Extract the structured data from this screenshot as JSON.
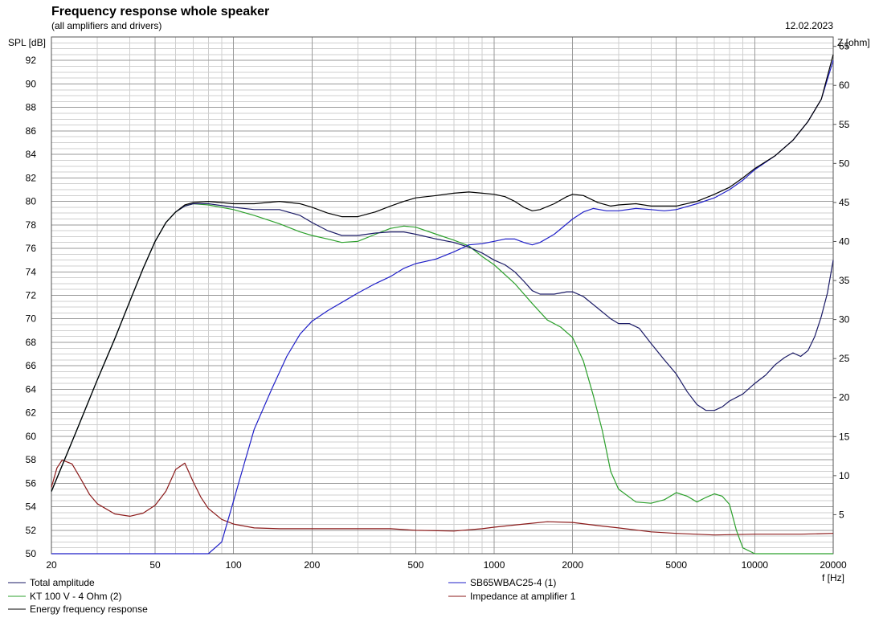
{
  "chart_data": {
    "type": "line",
    "title": "Frequency response whole speaker",
    "subtitle": "(all amplifiers and drivers)",
    "date": "12.02.2023",
    "ylabel": "SPL [dB]",
    "y2label": "Z [ohm]",
    "xlabel": "f [Hz]",
    "xscale": "log",
    "xlim": [
      20,
      20000
    ],
    "ylim": [
      50,
      94
    ],
    "y2lim": [
      0,
      66.2
    ],
    "grid": true,
    "legend_position": "bottom",
    "x_ticks": [
      20,
      50,
      100,
      200,
      500,
      1000,
      2000,
      5000,
      10000,
      20000
    ],
    "x_tick_labels": [
      "20",
      "50",
      "100",
      "200",
      "500",
      "1000",
      "2000",
      "5000",
      "10000",
      "20000"
    ],
    "y_ticks": [
      50,
      52,
      54,
      56,
      58,
      60,
      62,
      64,
      66,
      68,
      70,
      72,
      74,
      76,
      78,
      80,
      82,
      84,
      86,
      88,
      90,
      92
    ],
    "y_tick_labels": [
      "50",
      "52",
      "54",
      "56",
      "58",
      "60",
      "62",
      "64",
      "66",
      "68",
      "70",
      "72",
      "74",
      "76",
      "78",
      "80",
      "82",
      "84",
      "86",
      "88",
      "90",
      "92"
    ],
    "y2_ticks": [
      5,
      10,
      15,
      20,
      25,
      30,
      35,
      40,
      45,
      50,
      55,
      60,
      65
    ],
    "y2_tick_labels": [
      "5",
      "10",
      "15",
      "20",
      "25",
      "30",
      "35",
      "40",
      "45",
      "50",
      "55",
      "60",
      "65"
    ],
    "series": [
      {
        "name": "Total amplitude",
        "axis": "left",
        "color": "#1a1a66",
        "points": [
          [
            20,
            55.3
          ],
          [
            25,
            60.5
          ],
          [
            30,
            64.8
          ],
          [
            35,
            68.3
          ],
          [
            40,
            71.5
          ],
          [
            45,
            74.3
          ],
          [
            50,
            76.6
          ],
          [
            55,
            78.2
          ],
          [
            60,
            79.1
          ],
          [
            65,
            79.6
          ],
          [
            70,
            79.8
          ],
          [
            80,
            79.8
          ],
          [
            100,
            79.5
          ],
          [
            120,
            79.3
          ],
          [
            150,
            79.3
          ],
          [
            180,
            78.8
          ],
          [
            200,
            78.2
          ],
          [
            230,
            77.5
          ],
          [
            260,
            77.1
          ],
          [
            300,
            77.1
          ],
          [
            350,
            77.3
          ],
          [
            400,
            77.4
          ],
          [
            450,
            77.4
          ],
          [
            500,
            77.2
          ],
          [
            600,
            76.8
          ],
          [
            700,
            76.5
          ],
          [
            800,
            76.1
          ],
          [
            900,
            75.6
          ],
          [
            1000,
            75.0
          ],
          [
            1100,
            74.6
          ],
          [
            1200,
            74.0
          ],
          [
            1300,
            73.2
          ],
          [
            1400,
            72.4
          ],
          [
            1500,
            72.1
          ],
          [
            1700,
            72.1
          ],
          [
            1900,
            72.3
          ],
          [
            2000,
            72.3
          ],
          [
            2200,
            71.9
          ],
          [
            2500,
            70.9
          ],
          [
            2800,
            70.0
          ],
          [
            3000,
            69.6
          ],
          [
            3300,
            69.6
          ],
          [
            3600,
            69.2
          ],
          [
            4000,
            67.9
          ],
          [
            4500,
            66.5
          ],
          [
            5000,
            65.3
          ],
          [
            5500,
            63.8
          ],
          [
            6000,
            62.7
          ],
          [
            6500,
            62.2
          ],
          [
            7000,
            62.2
          ],
          [
            7500,
            62.5
          ],
          [
            8000,
            63.0
          ],
          [
            9000,
            63.6
          ],
          [
            10000,
            64.5
          ],
          [
            11000,
            65.2
          ],
          [
            12000,
            66.1
          ],
          [
            13000,
            66.7
          ],
          [
            14000,
            67.1
          ],
          [
            15000,
            66.8
          ],
          [
            16000,
            67.3
          ],
          [
            17000,
            68.5
          ],
          [
            18000,
            70.2
          ],
          [
            19000,
            72.2
          ],
          [
            20000,
            75.0
          ]
        ]
      },
      {
        "name": "SB65WBAC25-4 (1)",
        "axis": "left",
        "color": "#1f1fc8",
        "points": [
          [
            20,
            50
          ],
          [
            80,
            50
          ],
          [
            90,
            51.0
          ],
          [
            100,
            54.5
          ],
          [
            110,
            57.7
          ],
          [
            120,
            60.6
          ],
          [
            140,
            64.0
          ],
          [
            160,
            66.8
          ],
          [
            180,
            68.7
          ],
          [
            200,
            69.8
          ],
          [
            230,
            70.7
          ],
          [
            270,
            71.6
          ],
          [
            300,
            72.2
          ],
          [
            350,
            73.0
          ],
          [
            400,
            73.6
          ],
          [
            450,
            74.3
          ],
          [
            500,
            74.7
          ],
          [
            550,
            74.9
          ],
          [
            600,
            75.1
          ],
          [
            700,
            75.7
          ],
          [
            800,
            76.3
          ],
          [
            900,
            76.4
          ],
          [
            1000,
            76.6
          ],
          [
            1100,
            76.8
          ],
          [
            1200,
            76.8
          ],
          [
            1300,
            76.5
          ],
          [
            1400,
            76.3
          ],
          [
            1500,
            76.5
          ],
          [
            1700,
            77.2
          ],
          [
            2000,
            78.5
          ],
          [
            2200,
            79.1
          ],
          [
            2400,
            79.4
          ],
          [
            2700,
            79.2
          ],
          [
            3000,
            79.2
          ],
          [
            3500,
            79.4
          ],
          [
            4000,
            79.3
          ],
          [
            4500,
            79.2
          ],
          [
            5000,
            79.3
          ],
          [
            6000,
            79.8
          ],
          [
            7000,
            80.3
          ],
          [
            8000,
            81.0
          ],
          [
            9000,
            81.8
          ],
          [
            10000,
            82.7
          ],
          [
            12000,
            83.9
          ],
          [
            14000,
            85.2
          ],
          [
            16000,
            86.8
          ],
          [
            18000,
            88.7
          ],
          [
            20000,
            92.0
          ]
        ]
      },
      {
        "name": "KT 100 V - 4 Ohm (2)",
        "axis": "left",
        "color": "#2ca02c",
        "points": [
          [
            20,
            55.3
          ],
          [
            25,
            60.5
          ],
          [
            30,
            64.8
          ],
          [
            35,
            68.3
          ],
          [
            40,
            71.5
          ],
          [
            45,
            74.3
          ],
          [
            50,
            76.6
          ],
          [
            55,
            78.2
          ],
          [
            60,
            79.1
          ],
          [
            65,
            79.6
          ],
          [
            70,
            79.8
          ],
          [
            80,
            79.7
          ],
          [
            100,
            79.3
          ],
          [
            120,
            78.8
          ],
          [
            150,
            78.1
          ],
          [
            180,
            77.4
          ],
          [
            200,
            77.1
          ],
          [
            230,
            76.8
          ],
          [
            260,
            76.5
          ],
          [
            300,
            76.6
          ],
          [
            350,
            77.2
          ],
          [
            400,
            77.7
          ],
          [
            450,
            77.9
          ],
          [
            500,
            77.8
          ],
          [
            600,
            77.2
          ],
          [
            700,
            76.7
          ],
          [
            800,
            76.2
          ],
          [
            900,
            75.3
          ],
          [
            1000,
            74.6
          ],
          [
            1200,
            73.0
          ],
          [
            1400,
            71.3
          ],
          [
            1600,
            69.9
          ],
          [
            1800,
            69.3
          ],
          [
            2000,
            68.4
          ],
          [
            2200,
            66.4
          ],
          [
            2400,
            63.5
          ],
          [
            2600,
            60.5
          ],
          [
            2800,
            57.0
          ],
          [
            3000,
            55.5
          ],
          [
            3500,
            54.4
          ],
          [
            4000,
            54.3
          ],
          [
            4500,
            54.6
          ],
          [
            5000,
            55.2
          ],
          [
            5500,
            54.9
          ],
          [
            6000,
            54.4
          ],
          [
            6500,
            54.8
          ],
          [
            7000,
            55.1
          ],
          [
            7500,
            54.9
          ],
          [
            8000,
            54.2
          ],
          [
            8500,
            52.0
          ],
          [
            9000,
            50.5
          ],
          [
            10000,
            50
          ],
          [
            20000,
            50
          ]
        ]
      },
      {
        "name": "Impedance at amplifier 1",
        "axis": "right",
        "color": "#8b1a1a",
        "points": [
          [
            20,
            8.5
          ],
          [
            21,
            11
          ],
          [
            22,
            12
          ],
          [
            24,
            11.5
          ],
          [
            26,
            9.5
          ],
          [
            28,
            7.6
          ],
          [
            30,
            6.4
          ],
          [
            35,
            5.1
          ],
          [
            40,
            4.8
          ],
          [
            45,
            5.2
          ],
          [
            50,
            6.2
          ],
          [
            55,
            8.0
          ],
          [
            60,
            10.8
          ],
          [
            65,
            11.6
          ],
          [
            70,
            9.2
          ],
          [
            75,
            7.2
          ],
          [
            80,
            5.8
          ],
          [
            90,
            4.4
          ],
          [
            100,
            3.8
          ],
          [
            120,
            3.3
          ],
          [
            150,
            3.2
          ],
          [
            200,
            3.2
          ],
          [
            300,
            3.2
          ],
          [
            400,
            3.2
          ],
          [
            500,
            3.0
          ],
          [
            700,
            2.9
          ],
          [
            900,
            3.2
          ],
          [
            1000,
            3.4
          ],
          [
            1300,
            3.8
          ],
          [
            1600,
            4.1
          ],
          [
            2000,
            4.0
          ],
          [
            2500,
            3.6
          ],
          [
            3000,
            3.3
          ],
          [
            4000,
            2.8
          ],
          [
            5000,
            2.6
          ],
          [
            7000,
            2.4
          ],
          [
            10000,
            2.5
          ],
          [
            15000,
            2.5
          ],
          [
            20000,
            2.6
          ]
        ]
      },
      {
        "name": "Energy frequency response",
        "axis": "left",
        "color": "#000000",
        "points": [
          [
            20,
            55.3
          ],
          [
            25,
            60.5
          ],
          [
            30,
            64.8
          ],
          [
            35,
            68.3
          ],
          [
            40,
            71.5
          ],
          [
            45,
            74.3
          ],
          [
            50,
            76.6
          ],
          [
            55,
            78.2
          ],
          [
            60,
            79.1
          ],
          [
            65,
            79.7
          ],
          [
            70,
            79.9
          ],
          [
            80,
            80.0
          ],
          [
            100,
            79.8
          ],
          [
            120,
            79.8
          ],
          [
            150,
            80.0
          ],
          [
            180,
            79.8
          ],
          [
            200,
            79.5
          ],
          [
            230,
            79.0
          ],
          [
            260,
            78.7
          ],
          [
            300,
            78.7
          ],
          [
            350,
            79.1
          ],
          [
            400,
            79.6
          ],
          [
            450,
            80.0
          ],
          [
            500,
            80.3
          ],
          [
            600,
            80.5
          ],
          [
            700,
            80.7
          ],
          [
            800,
            80.8
          ],
          [
            900,
            80.7
          ],
          [
            1000,
            80.6
          ],
          [
            1100,
            80.4
          ],
          [
            1200,
            80.0
          ],
          [
            1300,
            79.5
          ],
          [
            1400,
            79.2
          ],
          [
            1500,
            79.3
          ],
          [
            1700,
            79.8
          ],
          [
            1900,
            80.4
          ],
          [
            2000,
            80.6
          ],
          [
            2200,
            80.5
          ],
          [
            2500,
            79.9
          ],
          [
            2800,
            79.6
          ],
          [
            3000,
            79.7
          ],
          [
            3500,
            79.8
          ],
          [
            4000,
            79.6
          ],
          [
            4500,
            79.6
          ],
          [
            5000,
            79.6
          ],
          [
            6000,
            80.0
          ],
          [
            7000,
            80.6
          ],
          [
            8000,
            81.2
          ],
          [
            9000,
            82.0
          ],
          [
            10000,
            82.8
          ],
          [
            12000,
            83.9
          ],
          [
            14000,
            85.2
          ],
          [
            16000,
            86.8
          ],
          [
            18000,
            88.7
          ],
          [
            20000,
            92.5
          ]
        ]
      }
    ]
  }
}
